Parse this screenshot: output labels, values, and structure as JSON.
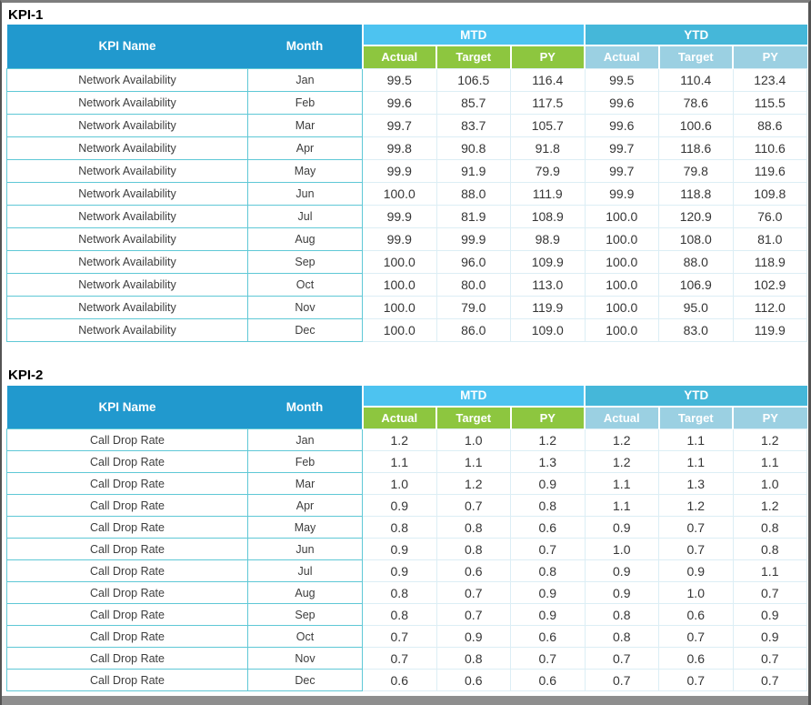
{
  "colors": {
    "header_blue": "#2199CE",
    "mtd_band": "#4DC3F0",
    "ytd_band": "#45B7D9",
    "mtd_sub": "#8DC63F",
    "ytd_sub": "#9BD0E2",
    "teal_border": "#5FC8D6",
    "light_border": "#DCEEF5",
    "bottom_bar": "#8e8e8e"
  },
  "tables": [
    {
      "title": "KPI-1",
      "headers": {
        "kpi_name": "KPI Name",
        "month": "Month",
        "mtd": "MTD",
        "ytd": "YTD",
        "sub": [
          "Actual",
          "Target",
          "PY"
        ]
      },
      "kpi_label": "Network Availability",
      "rows": [
        {
          "month": "Jan",
          "mtd": [
            "99.5",
            "106.5",
            "116.4"
          ],
          "ytd": [
            "99.5",
            "110.4",
            "123.4"
          ]
        },
        {
          "month": "Feb",
          "mtd": [
            "99.6",
            "85.7",
            "117.5"
          ],
          "ytd": [
            "99.6",
            "78.6",
            "115.5"
          ]
        },
        {
          "month": "Mar",
          "mtd": [
            "99.7",
            "83.7",
            "105.7"
          ],
          "ytd": [
            "99.6",
            "100.6",
            "88.6"
          ]
        },
        {
          "month": "Apr",
          "mtd": [
            "99.8",
            "90.8",
            "91.8"
          ],
          "ytd": [
            "99.7",
            "118.6",
            "110.6"
          ]
        },
        {
          "month": "May",
          "mtd": [
            "99.9",
            "91.9",
            "79.9"
          ],
          "ytd": [
            "99.7",
            "79.8",
            "119.6"
          ]
        },
        {
          "month": "Jun",
          "mtd": [
            "100.0",
            "88.0",
            "111.9"
          ],
          "ytd": [
            "99.9",
            "118.8",
            "109.8"
          ]
        },
        {
          "month": "Jul",
          "mtd": [
            "99.9",
            "81.9",
            "108.9"
          ],
          "ytd": [
            "100.0",
            "120.9",
            "76.0"
          ]
        },
        {
          "month": "Aug",
          "mtd": [
            "99.9",
            "99.9",
            "98.9"
          ],
          "ytd": [
            "100.0",
            "108.0",
            "81.0"
          ]
        },
        {
          "month": "Sep",
          "mtd": [
            "100.0",
            "96.0",
            "109.9"
          ],
          "ytd": [
            "100.0",
            "88.0",
            "118.9"
          ]
        },
        {
          "month": "Oct",
          "mtd": [
            "100.0",
            "80.0",
            "113.0"
          ],
          "ytd": [
            "100.0",
            "106.9",
            "102.9"
          ]
        },
        {
          "month": "Nov",
          "mtd": [
            "100.0",
            "79.0",
            "119.9"
          ],
          "ytd": [
            "100.0",
            "95.0",
            "112.0"
          ]
        },
        {
          "month": "Dec",
          "mtd": [
            "100.0",
            "86.0",
            "109.0"
          ],
          "ytd": [
            "100.0",
            "83.0",
            "119.9"
          ]
        }
      ]
    },
    {
      "title": "KPI-2",
      "headers": {
        "kpi_name": "KPI Name",
        "month": "Month",
        "mtd": "MTD",
        "ytd": "YTD",
        "sub": [
          "Actual",
          "Target",
          "PY"
        ]
      },
      "kpi_label": "Call Drop Rate",
      "rows": [
        {
          "month": "Jan",
          "mtd": [
            "1.2",
            "1.0",
            "1.2"
          ],
          "ytd": [
            "1.2",
            "1.1",
            "1.2"
          ]
        },
        {
          "month": "Feb",
          "mtd": [
            "1.1",
            "1.1",
            "1.3"
          ],
          "ytd": [
            "1.2",
            "1.1",
            "1.1"
          ]
        },
        {
          "month": "Mar",
          "mtd": [
            "1.0",
            "1.2",
            "0.9"
          ],
          "ytd": [
            "1.1",
            "1.3",
            "1.0"
          ]
        },
        {
          "month": "Apr",
          "mtd": [
            "0.9",
            "0.7",
            "0.8"
          ],
          "ytd": [
            "1.1",
            "1.2",
            "1.2"
          ]
        },
        {
          "month": "May",
          "mtd": [
            "0.8",
            "0.8",
            "0.6"
          ],
          "ytd": [
            "0.9",
            "0.7",
            "0.8"
          ]
        },
        {
          "month": "Jun",
          "mtd": [
            "0.9",
            "0.8",
            "0.7"
          ],
          "ytd": [
            "1.0",
            "0.7",
            "0.8"
          ]
        },
        {
          "month": "Jul",
          "mtd": [
            "0.9",
            "0.6",
            "0.8"
          ],
          "ytd": [
            "0.9",
            "0.9",
            "1.1"
          ]
        },
        {
          "month": "Aug",
          "mtd": [
            "0.8",
            "0.7",
            "0.9"
          ],
          "ytd": [
            "0.9",
            "1.0",
            "0.7"
          ]
        },
        {
          "month": "Sep",
          "mtd": [
            "0.8",
            "0.7",
            "0.9"
          ],
          "ytd": [
            "0.8",
            "0.6",
            "0.9"
          ]
        },
        {
          "month": "Oct",
          "mtd": [
            "0.7",
            "0.9",
            "0.6"
          ],
          "ytd": [
            "0.8",
            "0.7",
            "0.9"
          ]
        },
        {
          "month": "Nov",
          "mtd": [
            "0.7",
            "0.8",
            "0.7"
          ],
          "ytd": [
            "0.7",
            "0.6",
            "0.7"
          ]
        },
        {
          "month": "Dec",
          "mtd": [
            "0.6",
            "0.6",
            "0.6"
          ],
          "ytd": [
            "0.7",
            "0.7",
            "0.7"
          ]
        }
      ]
    }
  ]
}
